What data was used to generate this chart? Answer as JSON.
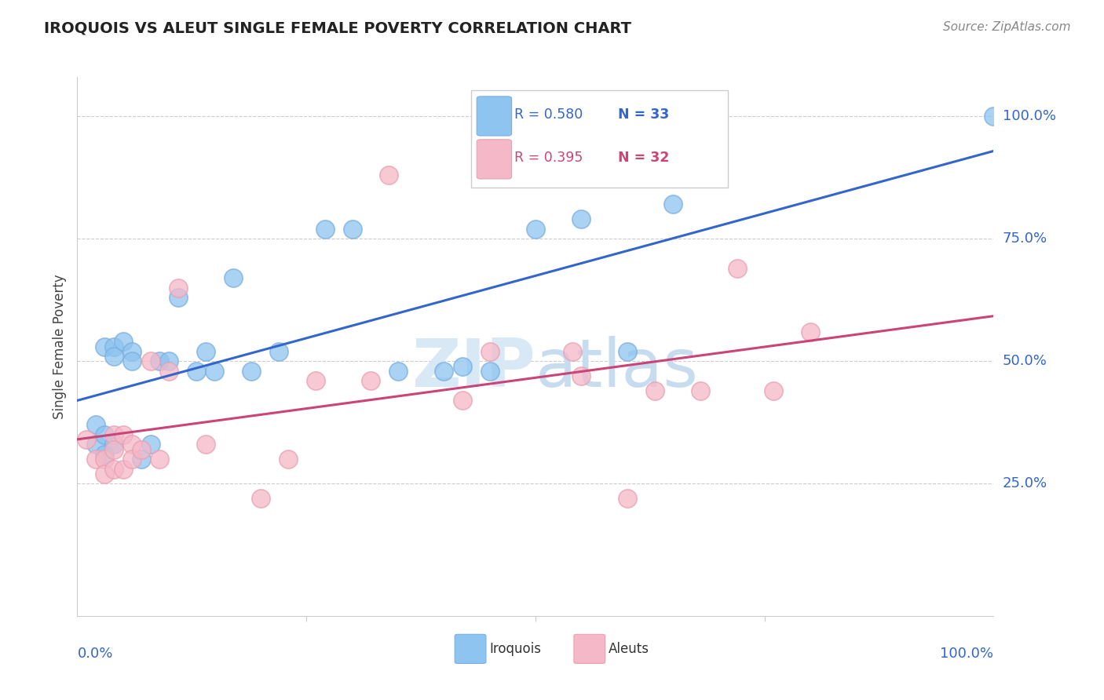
{
  "title": "IROQUOIS VS ALEUT SINGLE FEMALE POVERTY CORRELATION CHART",
  "source": "Source: ZipAtlas.com",
  "ylabel": "Single Female Poverty",
  "ytick_labels": [
    "25.0%",
    "50.0%",
    "75.0%",
    "100.0%"
  ],
  "ytick_positions": [
    0.25,
    0.5,
    0.75,
    1.0
  ],
  "xlim": [
    0.0,
    1.0
  ],
  "ylim": [
    -0.02,
    1.08
  ],
  "iroquois_color": "#8DC4F0",
  "iroquois_edge_color": "#7AAEE0",
  "aleut_color": "#F5B8C8",
  "aleut_edge_color": "#E8A0B2",
  "iroquois_line_color": "#3366CC",
  "aleut_line_color": "#CC4477",
  "legend_r_iroquois": "R = 0.580",
  "legend_n_iroquois": "N = 33",
  "legend_r_aleut": "R = 0.395",
  "legend_n_aleut": "N = 32",
  "iroquois_x": [
    0.02,
    0.02,
    0.03,
    0.03,
    0.03,
    0.04,
    0.04,
    0.04,
    0.05,
    0.06,
    0.06,
    0.07,
    0.08,
    0.09,
    0.1,
    0.11,
    0.13,
    0.14,
    0.15,
    0.17,
    0.19,
    0.22,
    0.27,
    0.3,
    0.35,
    0.4,
    0.42,
    0.45,
    0.5,
    0.55,
    0.6,
    0.65,
    1.0
  ],
  "iroquois_y": [
    0.33,
    0.37,
    0.35,
    0.31,
    0.53,
    0.53,
    0.51,
    0.33,
    0.54,
    0.52,
    0.5,
    0.3,
    0.33,
    0.5,
    0.5,
    0.63,
    0.48,
    0.52,
    0.48,
    0.67,
    0.48,
    0.52,
    0.77,
    0.77,
    0.48,
    0.48,
    0.49,
    0.48,
    0.77,
    0.79,
    0.52,
    0.82,
    1.0
  ],
  "aleut_x": [
    0.01,
    0.02,
    0.03,
    0.03,
    0.04,
    0.04,
    0.04,
    0.05,
    0.05,
    0.06,
    0.06,
    0.07,
    0.08,
    0.09,
    0.1,
    0.11,
    0.14,
    0.2,
    0.23,
    0.26,
    0.32,
    0.34,
    0.42,
    0.45,
    0.54,
    0.55,
    0.6,
    0.63,
    0.68,
    0.72,
    0.76,
    0.8
  ],
  "aleut_y": [
    0.34,
    0.3,
    0.3,
    0.27,
    0.35,
    0.32,
    0.28,
    0.35,
    0.28,
    0.33,
    0.3,
    0.32,
    0.5,
    0.3,
    0.48,
    0.65,
    0.33,
    0.22,
    0.3,
    0.46,
    0.46,
    0.88,
    0.42,
    0.52,
    0.52,
    0.47,
    0.22,
    0.44,
    0.44,
    0.69,
    0.44,
    0.56
  ],
  "watermark_zip": "ZIP",
  "watermark_atlas": "atlas",
  "background_color": "#FFFFFF",
  "grid_color": "#CCCCCC",
  "spine_color": "#CCCCCC"
}
